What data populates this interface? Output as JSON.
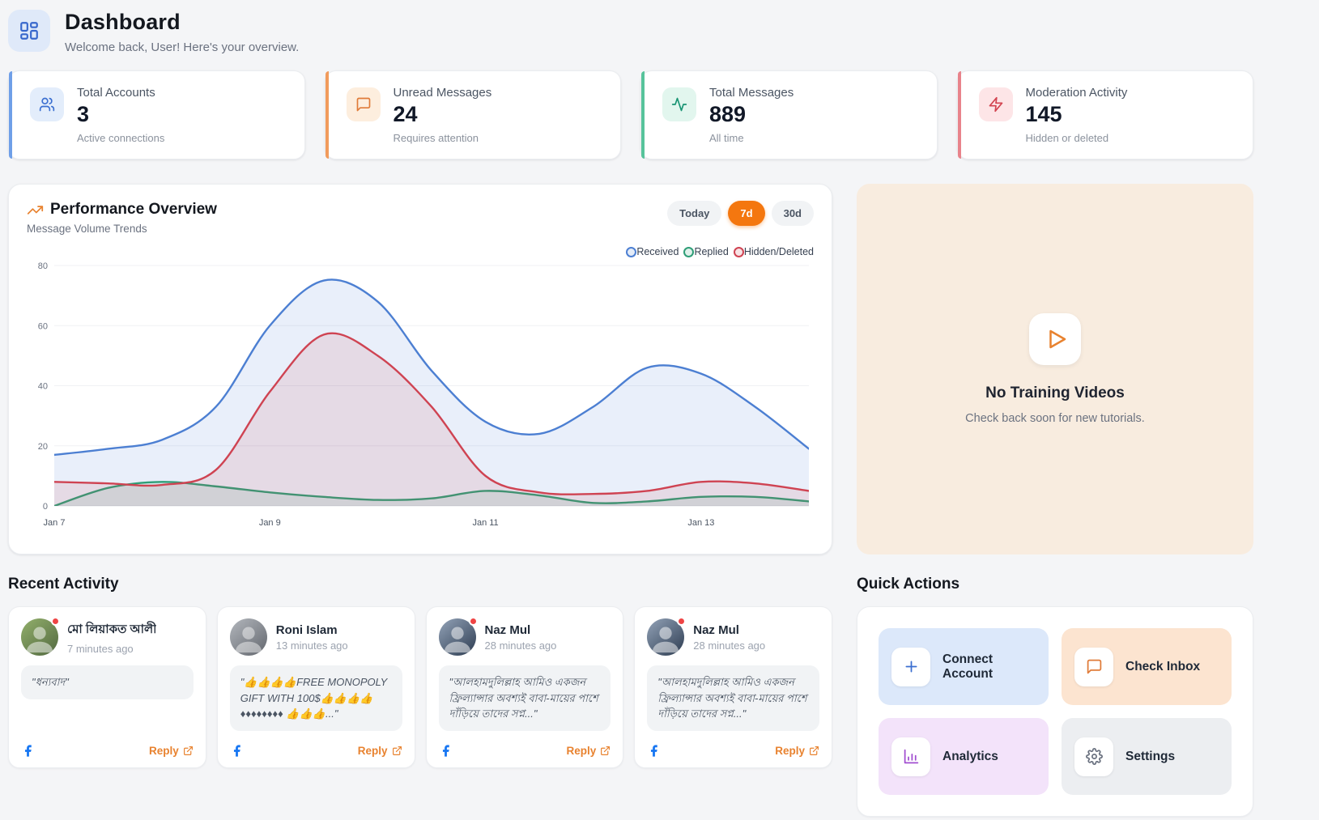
{
  "header": {
    "title": "Dashboard",
    "subtitle": "Welcome back, User! Here's your overview.",
    "icon": "dashboard-grid-icon"
  },
  "stats": [
    {
      "label": "Total Accounts",
      "value": "3",
      "caption": "Active connections",
      "icon": "users-icon",
      "accent": "#6f9fe8"
    },
    {
      "label": "Unread Messages",
      "value": "24",
      "caption": "Requires attention",
      "icon": "message-square-icon",
      "accent": "#f19b5c"
    },
    {
      "label": "Total Messages",
      "value": "889",
      "caption": "All time",
      "icon": "activity-icon",
      "accent": "#57c39b"
    },
    {
      "label": "Moderation Activity",
      "value": "145",
      "caption": "Hidden or deleted",
      "icon": "zap-icon",
      "accent": "#e8838b"
    }
  ],
  "performance": {
    "title": "Performance Overview",
    "subtitle": "Message Volume Trends",
    "ranges": [
      "Today",
      "7d",
      "30d"
    ],
    "active_range": "7d",
    "active_range_color": "#f4770f",
    "legend": [
      "Received",
      "Replied",
      "Hidden/Deleted"
    ]
  },
  "chart_data": {
    "type": "area",
    "title": "Performance Overview",
    "subtitle": "Message Volume Trends",
    "x_unit": "January date",
    "x": [
      7,
      7.5,
      8,
      8.5,
      9,
      9.5,
      10,
      10.5,
      11,
      11.5,
      12,
      12.5,
      13,
      13.5,
      14
    ],
    "tick_positions": [
      7,
      9,
      11,
      13
    ],
    "tick_labels": [
      "Jan 7",
      "Jan 9",
      "Jan 11",
      "Jan 13"
    ],
    "ylim": [
      0,
      80
    ],
    "y_ticks": [
      0,
      20,
      40,
      60,
      80
    ],
    "grid": true,
    "legend_position": "top-right",
    "series": [
      {
        "name": "Received",
        "color": "#4c7fd2",
        "values": [
          17,
          19,
          22,
          33,
          60,
          75,
          68,
          45,
          28,
          24,
          33,
          46,
          44,
          33,
          19
        ]
      },
      {
        "name": "Replied",
        "color": "#2f9e77",
        "values": [
          0,
          6,
          8,
          6.5,
          4.5,
          3,
          2,
          2.5,
          5,
          3.5,
          1,
          1.5,
          3,
          3,
          1.5
        ]
      },
      {
        "name": "Hidden/Deleted",
        "color": "#cf4352",
        "values": [
          8,
          7.5,
          7,
          12,
          38,
          57,
          50,
          33,
          10,
          4.5,
          4,
          5,
          8,
          7.5,
          5
        ]
      }
    ]
  },
  "training": {
    "title": "No Training Videos",
    "subtitle": "Check back soon for new tutorials.",
    "icon": "play-icon"
  },
  "recent": {
    "heading": "Recent Activity",
    "reply_label": "Reply",
    "cards": [
      {
        "name": "মো লিয়াকত আলী",
        "time": "7 minutes ago",
        "message": "\"ধন্যবাদ\"",
        "platform": "facebook",
        "unread": true
      },
      {
        "name": "Roni Islam",
        "time": "13 minutes ago",
        "message": "\"👍👍👍👍FREE MONOPOLY GIFT WITH 100$👍👍👍👍 ♦♦♦♦♦♦♦♦ 👍👍👍...\"",
        "platform": "facebook",
        "unread": false
      },
      {
        "name": "Naz Mul",
        "time": "28 minutes ago",
        "message": "\"আলহামদুলিল্লাহ আমিও একজন ফ্রিল্যান্সার অবশ্যই বাবা-মায়ের পাশে দাঁড়িয়ে তাদের সপ্ন...\"",
        "platform": "facebook",
        "unread": true
      },
      {
        "name": "Naz Mul",
        "time": "28 minutes ago",
        "message": "\"আলহামদুলিল্লাহ আমিও একজন ফ্রিল্যান্সার অবশ্যই বাবা-মায়ের পাশে দাঁড়িয়ে তাদের সপ্ন...\"",
        "platform": "facebook",
        "unread": true
      }
    ]
  },
  "quick_actions": {
    "heading": "Quick Actions",
    "items": [
      {
        "label": "Connect Account",
        "icon": "plus-icon",
        "bg": "#dce8fa",
        "icon_color": "#3b6fd0"
      },
      {
        "label": "Check Inbox",
        "icon": "chat-bubble-icon",
        "bg": "#fce4d0",
        "icon_color": "#e07b39"
      },
      {
        "label": "Analytics",
        "icon": "bar-chart-icon",
        "bg": "#f3e3fa",
        "icon_color": "#a14ed0"
      },
      {
        "label": "Settings",
        "icon": "gear-icon",
        "bg": "#eceef1",
        "icon_color": "#6b7280"
      }
    ]
  }
}
